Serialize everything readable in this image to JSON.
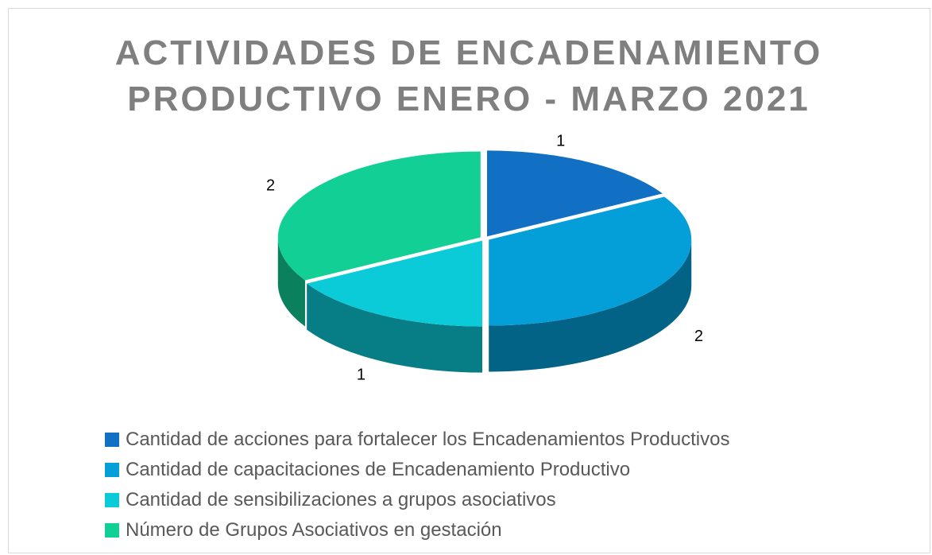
{
  "chart_data": {
    "type": "pie",
    "title": "ACTIVIDADES DE ENCADENAMIENTO PRODUCTIVO ENERO - MARZO 2021",
    "categories": [
      "Cantidad de acciones para fortalecer los Encadenamientos Productivos",
      "Cantidad de capacitaciones de Encadenamiento Productivo",
      "Cantidad de sensibilizaciones a grupos asociativos",
      "Número de Grupos Asociativos en gestación"
    ],
    "values": [
      1,
      2,
      1,
      2
    ],
    "colors": [
      "#1170c4",
      "#049fd9",
      "#0ccbd8",
      "#12cf96"
    ],
    "legend": "bottom"
  }
}
